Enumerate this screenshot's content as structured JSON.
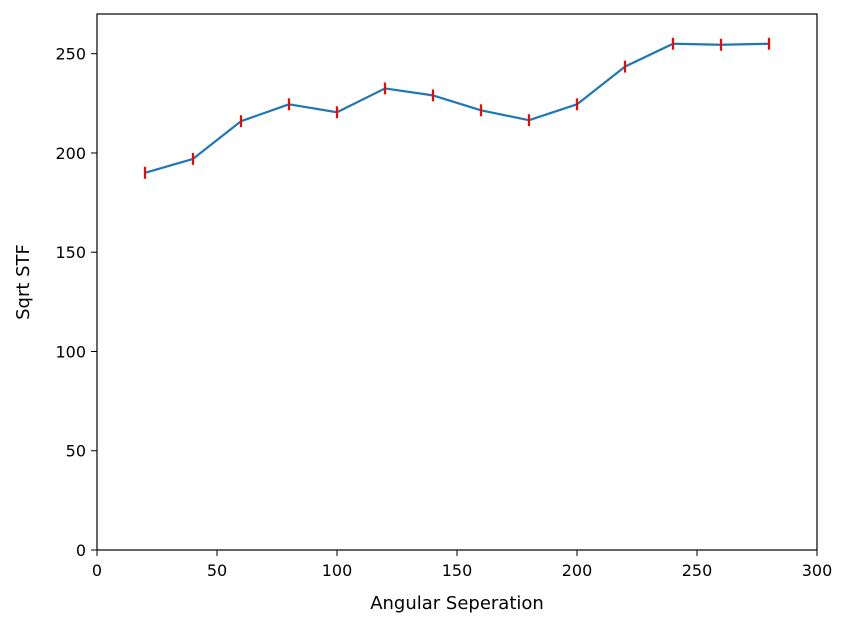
{
  "chart_data": {
    "type": "line",
    "xlabel": "Angular Seperation",
    "ylabel": "Sqrt STF",
    "xlim": [
      0,
      300
    ],
    "ylim": [
      0,
      270
    ],
    "xticks": [
      0,
      50,
      100,
      150,
      200,
      250,
      300
    ],
    "yticks": [
      0,
      50,
      100,
      150,
      200,
      250
    ],
    "grid": false,
    "colors": {
      "line": "#1f77b4",
      "error_bars": "#ff0000"
    },
    "series": [
      {
        "x": [
          20,
          40,
          60,
          80,
          100,
          120,
          140,
          160,
          180,
          200,
          220,
          240,
          260,
          280
        ],
        "y": [
          190,
          197,
          216,
          224.5,
          220.5,
          232.5,
          229,
          221.5,
          216.5,
          224.5,
          243.5,
          255,
          254.5,
          255
        ],
        "yerr": [
          3,
          3,
          3,
          3,
          3,
          3,
          3,
          3,
          3,
          3,
          3,
          3,
          3,
          3
        ]
      }
    ]
  }
}
